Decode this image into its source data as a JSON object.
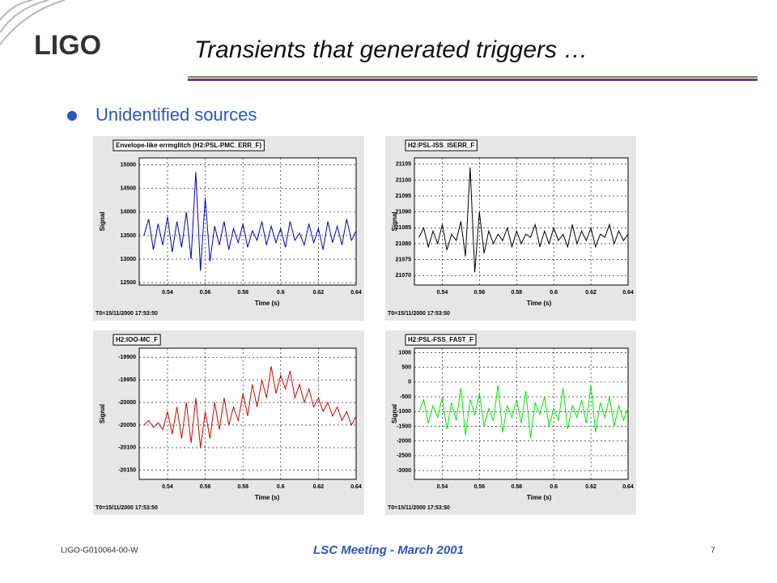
{
  "header": {
    "logo": "LIGO",
    "title": "Transients that generated triggers …"
  },
  "bullet": "Unidentified sources",
  "footer": {
    "doc_id": "LIGO-G010064-00-W",
    "meeting": "LSC Meeting - March 2001",
    "page": "7"
  },
  "chart_data": [
    {
      "type": "line",
      "title": "Envelope-like errmglitch (H2:PSL-PMC_ERR_F)",
      "x_label": "Time (s)",
      "y_label": "Signal",
      "note": "T0=15/11/2000 17:53:50",
      "xlim": [
        0.525,
        0.64
      ],
      "xticks": [
        0.54,
        0.56,
        0.58,
        0.6,
        0.62,
        0.64
      ],
      "ylim": [
        12450,
        15150
      ],
      "yticks": [
        12500,
        13000,
        13500,
        14000,
        14500,
        15000
      ],
      "grid": true,
      "x": [
        0.5275,
        0.53,
        0.5325,
        0.535,
        0.5375,
        0.54,
        0.5425,
        0.545,
        0.5475,
        0.55,
        0.5525,
        0.555,
        0.5575,
        0.56,
        0.5625,
        0.565,
        0.5675,
        0.57,
        0.5725,
        0.575,
        0.5775,
        0.58,
        0.5825,
        0.585,
        0.5875,
        0.59,
        0.5925,
        0.595,
        0.5975,
        0.6,
        0.6025,
        0.605,
        0.6075,
        0.61,
        0.6125,
        0.615,
        0.6175,
        0.62,
        0.6225,
        0.625,
        0.6275,
        0.63,
        0.6325,
        0.635,
        0.6375,
        0.64
      ],
      "series": [
        {
          "color": "#0000cc",
          "values": [
            13500,
            13850,
            13200,
            13750,
            13300,
            13900,
            13150,
            13800,
            13250,
            14000,
            13000,
            14850,
            12750,
            14300,
            12950,
            13700,
            13300,
            13800,
            13200,
            13650,
            13350,
            13750,
            13250,
            13600,
            13400,
            13800,
            13300,
            13700,
            13350,
            13650,
            13250,
            13800,
            13400,
            13550,
            13300,
            13750,
            13350,
            13650,
            13200,
            13800,
            13350,
            13700,
            13300,
            13850,
            13400,
            13600
          ]
        }
      ]
    },
    {
      "type": "line",
      "title": "H2:PSL-ISS_ISERR_F",
      "x_label": "Time (s)",
      "y_label": "Signal",
      "note": "T0=15/11/2000 17:53:50",
      "xlim": [
        0.525,
        0.64
      ],
      "xticks": [
        0.54,
        0.56,
        0.58,
        0.6,
        0.62,
        0.64
      ],
      "ylim": [
        21067,
        21107
      ],
      "yticks": [
        21070,
        21075,
        21080,
        21085,
        21090,
        21095,
        21100,
        21105
      ],
      "grid": true,
      "x": [
        0.5275,
        0.53,
        0.5325,
        0.535,
        0.5375,
        0.54,
        0.5425,
        0.545,
        0.5475,
        0.55,
        0.5525,
        0.555,
        0.5575,
        0.56,
        0.5625,
        0.565,
        0.5675,
        0.57,
        0.5725,
        0.575,
        0.5775,
        0.58,
        0.5825,
        0.585,
        0.5875,
        0.59,
        0.5925,
        0.595,
        0.5975,
        0.6,
        0.6025,
        0.605,
        0.6075,
        0.61,
        0.6125,
        0.615,
        0.6175,
        0.62,
        0.6225,
        0.625,
        0.6275,
        0.63,
        0.6325,
        0.635,
        0.6375,
        0.64
      ],
      "series": [
        {
          "color": "#000000",
          "values": [
            21082,
            21085,
            21079,
            21084,
            21080,
            21086,
            21078,
            21083,
            21081,
            21087,
            21076,
            21104,
            21071,
            21090,
            21077,
            21084,
            21080,
            21083,
            21081,
            21085,
            21079,
            21084,
            21080,
            21083,
            21082,
            21086,
            21079,
            21084,
            21080,
            21085,
            21081,
            21083,
            21079,
            21086,
            21080,
            21084,
            21081,
            21085,
            21079,
            21083,
            21082,
            21086,
            21080,
            21084,
            21081,
            21083
          ]
        }
      ]
    },
    {
      "type": "line",
      "title": "H2:IOO-MC_F",
      "x_label": "Time (s)",
      "y_label": "Signal",
      "note": "T0=15/11/2000 17:53:50",
      "xlim": [
        0.525,
        0.64
      ],
      "xticks": [
        0.54,
        0.56,
        0.58,
        0.6,
        0.62,
        0.64
      ],
      "ylim": [
        -20170,
        -19880
      ],
      "yticks": [
        -20150,
        -20100,
        -20050,
        -20000,
        -19950,
        -19900
      ],
      "grid": true,
      "x": [
        0.5275,
        0.53,
        0.5325,
        0.535,
        0.5375,
        0.54,
        0.5425,
        0.545,
        0.5475,
        0.55,
        0.5525,
        0.555,
        0.5575,
        0.56,
        0.5625,
        0.565,
        0.5675,
        0.57,
        0.5725,
        0.575,
        0.5775,
        0.58,
        0.5825,
        0.585,
        0.5875,
        0.59,
        0.5925,
        0.595,
        0.5975,
        0.6,
        0.6025,
        0.605,
        0.6075,
        0.61,
        0.6125,
        0.615,
        0.6175,
        0.62,
        0.6225,
        0.625,
        0.6275,
        0.63,
        0.6325,
        0.635,
        0.6375,
        0.64
      ],
      "series": [
        {
          "color": "#dd0000",
          "values": [
            -20050,
            -20040,
            -20055,
            -20045,
            -20060,
            -20020,
            -20070,
            -20010,
            -20080,
            -20000,
            -20090,
            -19990,
            -20100,
            -20020,
            -20080,
            -20000,
            -20060,
            -19990,
            -20050,
            -20010,
            -20040,
            -19980,
            -20030,
            -19960,
            -20010,
            -19950,
            -19990,
            -19920,
            -19980,
            -19940,
            -19970,
            -19930,
            -19990,
            -19960,
            -20000,
            -19970,
            -20010,
            -19990,
            -20020,
            -20000,
            -20030,
            -20010,
            -20040,
            -20020,
            -20050,
            -20030
          ]
        }
      ]
    },
    {
      "type": "line",
      "title": "H2:PSL-FSS_FAST_F",
      "x_label": "Time (s)",
      "y_label": "Signal",
      "note": "T0=15/11/2000 17:53:50",
      "xlim": [
        0.525,
        0.64
      ],
      "xticks": [
        0.54,
        0.56,
        0.58,
        0.6,
        0.62,
        0.64
      ],
      "ylim": [
        -3300,
        1150
      ],
      "yticks": [
        -3000,
        -2500,
        -2000,
        -1500,
        -1000,
        -500,
        0,
        500,
        1000
      ],
      "grid": true,
      "x": [
        0.5275,
        0.53,
        0.5325,
        0.535,
        0.5375,
        0.54,
        0.5425,
        0.545,
        0.5475,
        0.55,
        0.5525,
        0.555,
        0.5575,
        0.56,
        0.5625,
        0.565,
        0.5675,
        0.57,
        0.5725,
        0.575,
        0.5775,
        0.58,
        0.5825,
        0.585,
        0.5875,
        0.59,
        0.5925,
        0.595,
        0.5975,
        0.6,
        0.6025,
        0.605,
        0.6075,
        0.61,
        0.6125,
        0.615,
        0.6175,
        0.62,
        0.6225,
        0.625,
        0.6275,
        0.63,
        0.6325,
        0.635,
        0.6375,
        0.64
      ],
      "series": [
        {
          "color": "#00ee00",
          "values": [
            -1000,
            -600,
            -1400,
            -800,
            -1200,
            -500,
            -1600,
            -700,
            -1300,
            -200,
            -1800,
            -600,
            -1100,
            -400,
            -1500,
            -900,
            -1300,
            -100,
            -1700,
            -800,
            -1200,
            -600,
            -1400,
            -300,
            -1900,
            -700,
            -1100,
            -500,
            -1500,
            -900,
            -1300,
            -200,
            -1600,
            -800,
            -1200,
            -600,
            -1400,
            -100,
            -1700,
            -700,
            -1200,
            -500,
            -1500,
            -800,
            -1300,
            -900
          ]
        }
      ]
    }
  ]
}
